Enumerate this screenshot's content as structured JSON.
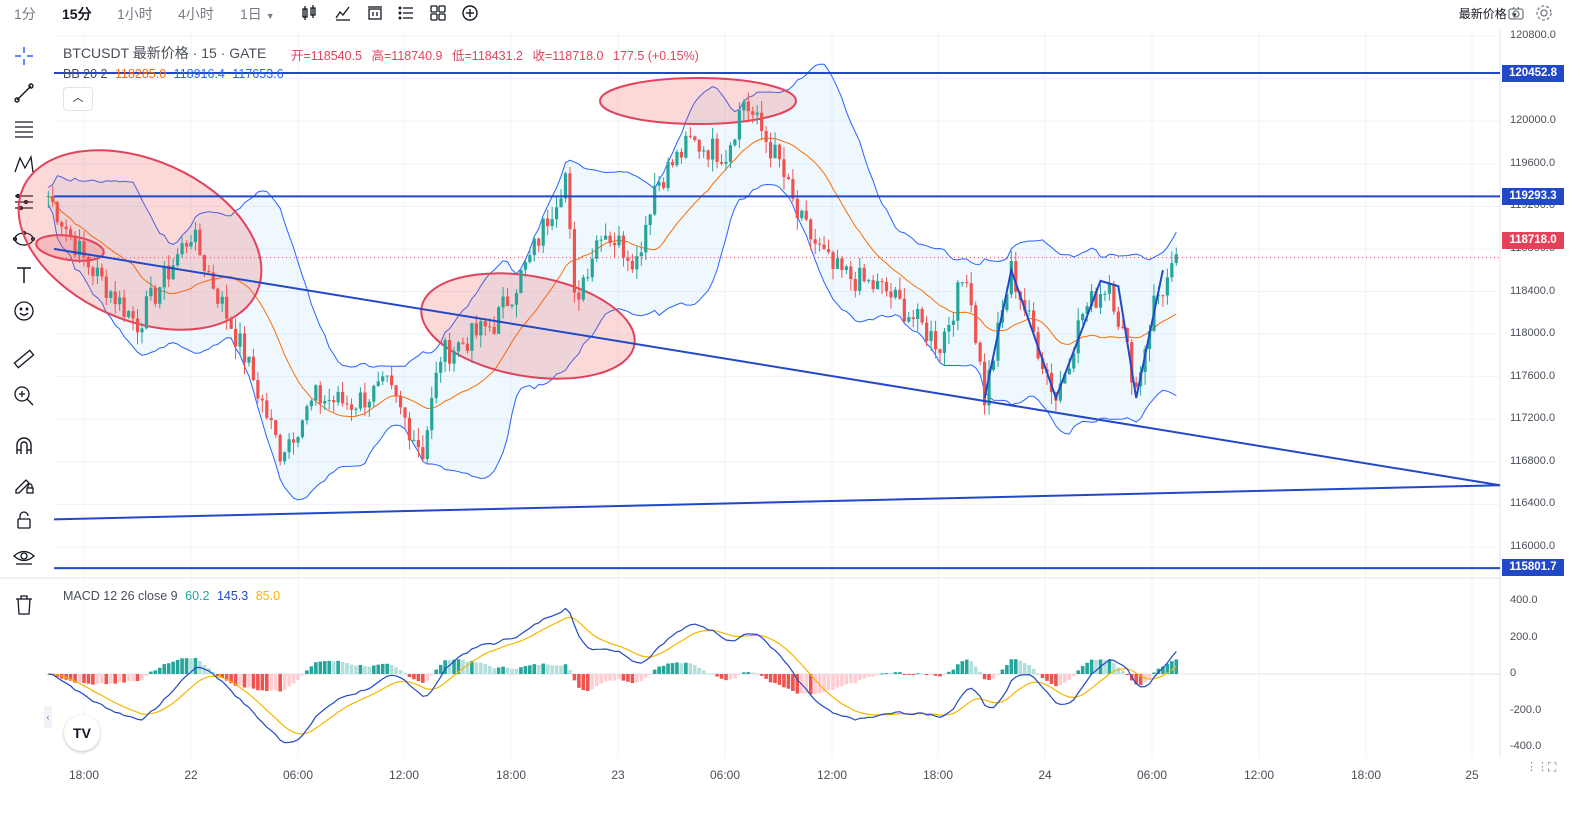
{
  "toolbar": {
    "timeframes": [
      "1分",
      "15分",
      "1小时",
      "4小时",
      "1日"
    ],
    "active_timeframe": "15分",
    "icons": [
      "candle-type-icon",
      "indicators-icon",
      "compare-icon",
      "alerts-icon",
      "layouts-icon",
      "add-icon"
    ],
    "price_mode": "最新价格",
    "right_icons": [
      "camera-icon",
      "settings-icon"
    ]
  },
  "left_tools": [
    "crosshair-icon",
    "trend-line-icon",
    "fib-icon",
    "pattern-icon",
    "projection-icon",
    "shapes-icon",
    "text-icon",
    "emoji-icon",
    "ruler-icon",
    "zoom-in-icon",
    "magnet-icon",
    "lock-draw-icon",
    "lock-icon",
    "eye-icon",
    "trash-icon"
  ],
  "legend": {
    "symbol": "BTCUSDT 最新价格 · 15 · GATE",
    "open_label": "开=118540.5",
    "high_label": "高=118740.9",
    "low_label": "低=118431.2",
    "close_label": "收=118718.0",
    "change_label": "177.5 (+0.15%)",
    "bb_label": "BB 20 2",
    "bb_mid": "118285.0",
    "bb_upper": "118916.4",
    "bb_lower": "117653.6",
    "macd_label": "MACD 12 26 close 9",
    "macd_hist": "60.2",
    "macd_line": "145.3",
    "macd_signal": "85.0"
  },
  "colors": {
    "up": "#26a69a",
    "down": "#ef5350",
    "band": "#2962ff",
    "basis": "#ff6d00",
    "drawing": "#2148c6",
    "ellipse": "#e2435b",
    "macd": "#2148c6",
    "signal": "#f7b500"
  },
  "price_axis": {
    "ticks": [
      "120800.0",
      "120400.0",
      "120000.0",
      "119600.0",
      "119200.0",
      "118800.0",
      "118400.0",
      "118000.0",
      "117600.0",
      "117200.0",
      "116800.0",
      "116400.0",
      "116000.0"
    ],
    "levels": [
      "120452.8",
      "119293.3",
      "115801.7"
    ],
    "last_price": "118718.0"
  },
  "macd_axis": {
    "ticks": [
      "400.0",
      "200.0",
      "0",
      "-200.0",
      "-400.0"
    ]
  },
  "time_axis": {
    "labels": [
      "18:00",
      "22",
      "06:00",
      "12:00",
      "18:00",
      "23",
      "06:00",
      "12:00",
      "18:00",
      "24",
      "06:00",
      "12:00",
      "18:00",
      "25"
    ]
  },
  "chart_data": {
    "type": "candlestick",
    "symbol": "BTCUSDT",
    "interval": "15",
    "exchange": "GATE",
    "price_range": [
      115800,
      120900
    ],
    "path_points": [
      {
        "t": "21 16:00",
        "price": 119300
      },
      {
        "t": "21 18:00",
        "price": 118700
      },
      {
        "t": "21 21:00",
        "price": 118100
      },
      {
        "t": "22 00:00",
        "price": 118950
      },
      {
        "t": "22 03:00",
        "price": 117800
      },
      {
        "t": "22 05:00",
        "price": 116900
      },
      {
        "t": "22 07:00",
        "price": 117400
      },
      {
        "t": "22 09:00",
        "price": 117350
      },
      {
        "t": "22 11:00",
        "price": 117500
      },
      {
        "t": "22 13:00",
        "price": 116900
      },
      {
        "t": "22 14:00",
        "price": 117800
      },
      {
        "t": "22 17:00",
        "price": 118100
      },
      {
        "t": "22 19:00",
        "price": 118700
      },
      {
        "t": "22 21:00",
        "price": 119500
      },
      {
        "t": "22 21:30",
        "price": 118300
      },
      {
        "t": "22 23:00",
        "price": 119000
      },
      {
        "t": "23 01:00",
        "price": 118700
      },
      {
        "t": "23 02:00",
        "price": 119400
      },
      {
        "t": "23 04:00",
        "price": 119800
      },
      {
        "t": "23 06:00",
        "price": 119700
      },
      {
        "t": "23 07:00",
        "price": 120200
      },
      {
        "t": "23 09:00",
        "price": 119600
      },
      {
        "t": "23 10:00",
        "price": 119100
      },
      {
        "t": "23 12:00",
        "price": 118600
      },
      {
        "t": "23 15:00",
        "price": 118400
      },
      {
        "t": "23 18:00",
        "price": 117900
      },
      {
        "t": "23 19:30",
        "price": 118600
      },
      {
        "t": "23 20:30",
        "price": 117400
      },
      {
        "t": "23 22:00",
        "price": 118600
      },
      {
        "t": "24 00:30",
        "price": 117400
      },
      {
        "t": "24 02:00",
        "price": 118200
      },
      {
        "t": "24 03:30",
        "price": 118500
      },
      {
        "t": "24 05:00",
        "price": 117500
      },
      {
        "t": "24 06:00",
        "price": 118300
      },
      {
        "t": "24 07:30",
        "price": 118700
      }
    ],
    "macd_range": [
      -420,
      420
    ],
    "annotations": {
      "horizontal_levels": [
        120452.8,
        119293.3,
        115801.7
      ],
      "triangle_upper": [
        {
          "t": "21 16:00",
          "price": 118800
        },
        {
          "t": "25 06:30",
          "price": 116580
        }
      ],
      "triangle_lower": [
        {
          "t": "21 16:00",
          "price": 116260
        },
        {
          "t": "25 06:30",
          "price": 116580
        }
      ]
    }
  }
}
